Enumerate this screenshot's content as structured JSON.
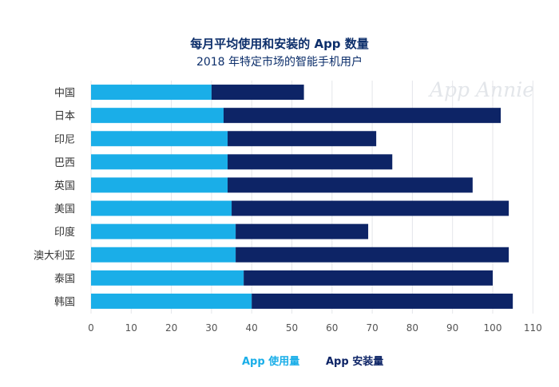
{
  "title": "每月平均使用和安装的 App 数量",
  "subtitle": "2018 年特定市场的智能手机用户",
  "watermark": "App Annie",
  "colors": {
    "used": "#1aaee8",
    "installed": "#0d2466",
    "grid": "#e4e6ea",
    "axis_text": "#555555"
  },
  "chart_data": {
    "type": "bar",
    "orientation": "horizontal",
    "stacked": true,
    "categories": [
      "中国",
      "日本",
      "印尼",
      "巴西",
      "英国",
      "美国",
      "印度",
      "澳大利亚",
      "泰国",
      "韩国"
    ],
    "series": [
      {
        "name": "App 使用量",
        "values": [
          30,
          33,
          34,
          34,
          34,
          35,
          36,
          36,
          38,
          40
        ]
      },
      {
        "name": "App 安装量",
        "values": [
          23,
          69,
          37,
          41,
          61,
          69,
          33,
          68,
          62,
          65
        ]
      }
    ],
    "totals": [
      53,
      102,
      71,
      75,
      95,
      104,
      69,
      104,
      100,
      105
    ],
    "xlim": [
      0,
      110
    ],
    "xticks": [
      0,
      10,
      20,
      30,
      40,
      50,
      60,
      70,
      80,
      90,
      100,
      110
    ],
    "grid": true,
    "legend_position": "bottom"
  }
}
